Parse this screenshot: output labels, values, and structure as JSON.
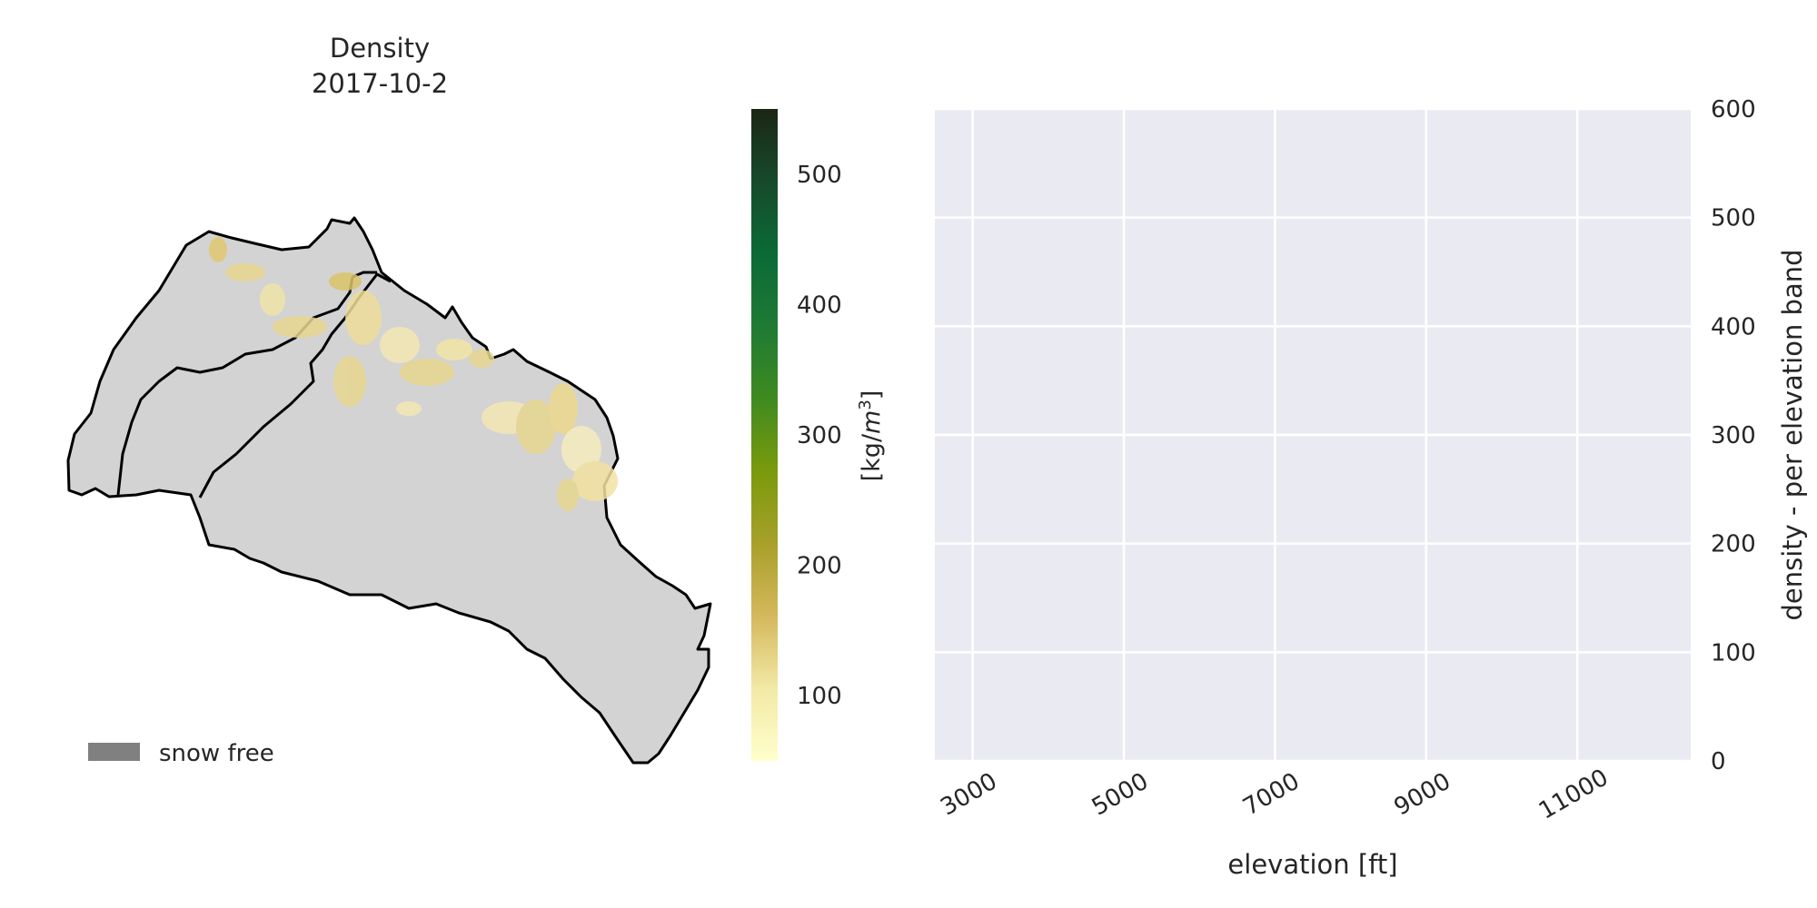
{
  "chart_data": [
    {
      "type": "map",
      "title": "Density",
      "subtitle": "2017-10-2",
      "legend": {
        "label": "snow free",
        "color": "#808080"
      },
      "colorbar": {
        "label": "[kg/m³]",
        "label_base": "[kg/",
        "label_unit": "m",
        "label_exp": "3",
        "label_close": "]",
        "range": [
          50,
          550
        ],
        "ticks": [
          100,
          200,
          300,
          400,
          500
        ],
        "colors": [
          "#ffffcc",
          "#f2e9a6",
          "#d4b85c",
          "#a8a02a",
          "#7a9a0c",
          "#3f8a20",
          "#1f7a35",
          "#0b6a36",
          "#174a2c",
          "#1b2614"
        ]
      },
      "basin_fill": "#d3d3d3",
      "outline_color": "#000000"
    },
    {
      "type": "bar",
      "xlabel": "elevation [ft]",
      "ylabel": "density - per elevation band",
      "xlim": [
        2500,
        12500
      ],
      "ylim": [
        0,
        600
      ],
      "xticks": [
        3000,
        5000,
        7000,
        9000,
        11000
      ],
      "yticks": [
        0,
        100,
        200,
        300,
        400,
        500,
        600
      ],
      "series": [],
      "grid": true,
      "background": "#eaeaf2"
    }
  ]
}
